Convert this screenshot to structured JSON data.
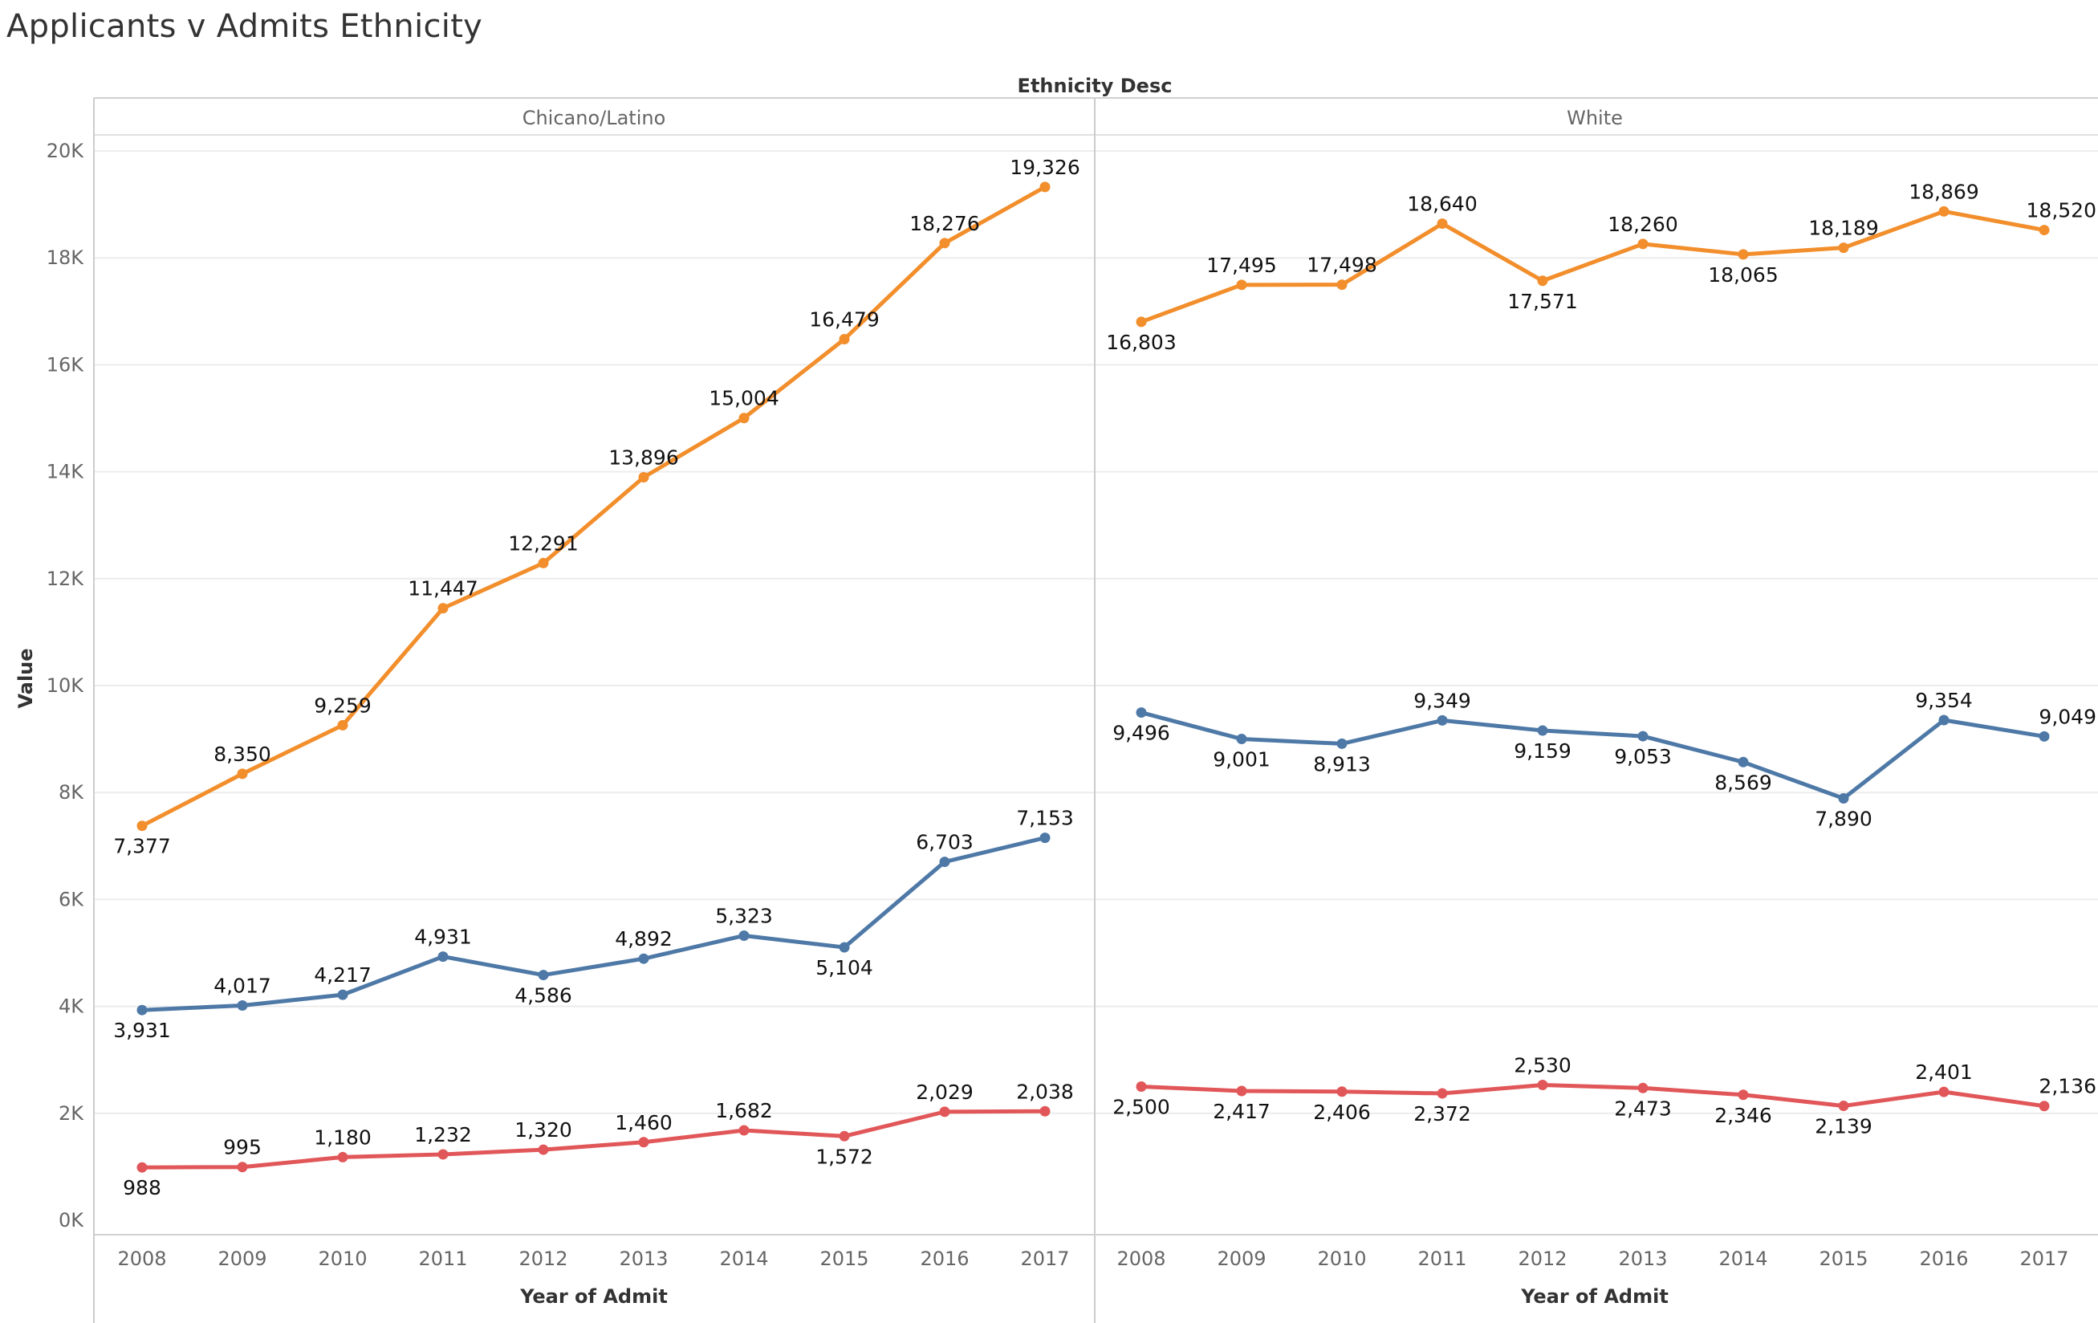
{
  "title": "Applicants v Admits Ethnicity",
  "chart_data": {
    "type": "line",
    "column_header_title": "Ethnicity Desc",
    "xlabel": "Year of Admit",
    "ylabel": "Value",
    "ylim": [
      0,
      20000
    ],
    "yticks": [
      0,
      2000,
      4000,
      6000,
      8000,
      10000,
      12000,
      14000,
      16000,
      18000,
      20000
    ],
    "ytick_labels": [
      "0K",
      "2K",
      "4K",
      "6K",
      "8K",
      "10K",
      "12K",
      "14K",
      "16K",
      "18K",
      "20K"
    ],
    "x": [
      "2008",
      "2009",
      "2010",
      "2011",
      "2012",
      "2013",
      "2014",
      "2015",
      "2016",
      "2017"
    ],
    "grid": "horizontal",
    "colors": {
      "orange": "#f28e2b",
      "blue": "#4e79a7",
      "red": "#e15759"
    },
    "panels": [
      {
        "name": "Chicano/Latino",
        "series": [
          {
            "color": "#f28e2b",
            "values": [
              7377,
              8350,
              9259,
              11447,
              12291,
              13896,
              15004,
              16479,
              18276,
              19326
            ],
            "labels": [
              "7,377",
              "8,350",
              "9,259",
              "11,447",
              "12,291",
              "13,896",
              "15,004",
              "16,479",
              "18,276",
              "19,326"
            ]
          },
          {
            "color": "#4e79a7",
            "values": [
              3931,
              4017,
              4217,
              4931,
              4586,
              4892,
              5323,
              5104,
              6703,
              7153
            ],
            "labels": [
              "3,931",
              "4,017",
              "4,217",
              "4,931",
              "4,586",
              "4,892",
              "5,323",
              "5,104",
              "6,703",
              "7,153"
            ]
          },
          {
            "color": "#e15759",
            "values": [
              988,
              995,
              1180,
              1232,
              1320,
              1460,
              1682,
              1572,
              2029,
              2038
            ],
            "labels": [
              "988",
              "995",
              "1,180",
              "1,232",
              "1,320",
              "1,460",
              "1,682",
              "1,572",
              "2,029",
              "2,038"
            ]
          }
        ]
      },
      {
        "name": "White",
        "series": [
          {
            "color": "#f28e2b",
            "values": [
              16803,
              17495,
              17498,
              18640,
              17571,
              18260,
              18065,
              18189,
              18869,
              18520
            ],
            "labels": [
              "16,803",
              "17,495",
              "17,498",
              "18,640",
              "17,571",
              "18,260",
              "18,065",
              "18,189",
              "18,869",
              "18,520"
            ]
          },
          {
            "color": "#4e79a7",
            "values": [
              9496,
              9001,
              8913,
              9349,
              9159,
              9053,
              8569,
              7890,
              9354,
              9049
            ],
            "labels": [
              "9,496",
              "9,001",
              "8,913",
              "9,349",
              "9,159",
              "9,053",
              "8,569",
              "7,890",
              "9,354",
              "9,049"
            ]
          },
          {
            "color": "#e15759",
            "values": [
              2500,
              2417,
              2406,
              2372,
              2530,
              2473,
              2346,
              2139,
              2401,
              2136
            ],
            "labels": [
              "2,500",
              "2,417",
              "2,406",
              "2,372",
              "2,530",
              "2,473",
              "2,346",
              "2,139",
              "2,401",
              "2,136"
            ]
          }
        ]
      }
    ]
  }
}
